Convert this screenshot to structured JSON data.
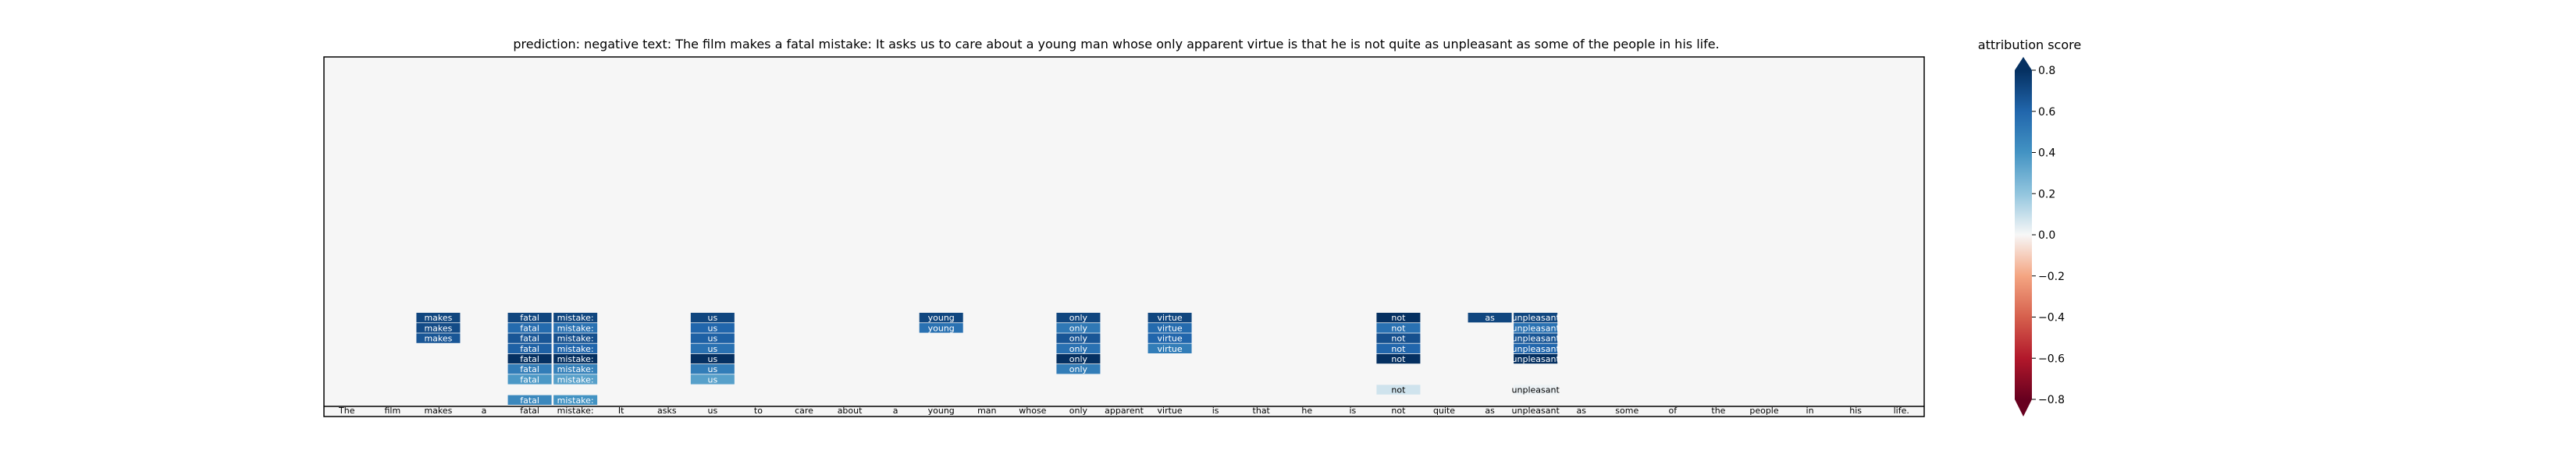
{
  "chart_data": {
    "type": "heatmap",
    "title": "prediction:  negative     text:  The film makes a fatal mistake: It asks us to care about a young man whose only apparent virtue is that he is not quite as unpleasant as some of the people in his life.",
    "tokens": [
      "The",
      "film",
      "makes",
      "a",
      "fatal",
      "mistake:",
      "It",
      "asks",
      "us",
      "to",
      "care",
      "about",
      "a",
      "young",
      "man",
      "whose",
      "only",
      "apparent",
      "virtue",
      "is",
      "that",
      "he",
      "is",
      "not",
      "quite",
      "as",
      "unpleasant",
      "as",
      "some",
      "of",
      "the",
      "people",
      "in",
      "his",
      "life."
    ],
    "cells": [
      {
        "token": 2,
        "row": 0,
        "value": 0.72
      },
      {
        "token": 2,
        "row": 1,
        "value": 0.7
      },
      {
        "token": 2,
        "row": 2,
        "value": 0.66
      },
      {
        "token": 4,
        "row": 0,
        "value": 0.72
      },
      {
        "token": 4,
        "row": 1,
        "value": 0.58
      },
      {
        "token": 4,
        "row": 2,
        "value": 0.66
      },
      {
        "token": 4,
        "row": 3,
        "value": 0.62
      },
      {
        "token": 4,
        "row": 4,
        "value": 0.82
      },
      {
        "token": 4,
        "row": 5,
        "value": 0.5
      },
      {
        "token": 4,
        "row": 6,
        "value": 0.38
      },
      {
        "token": 4,
        "row": 8,
        "value": 0.45
      },
      {
        "token": 5,
        "row": 0,
        "value": 0.72
      },
      {
        "token": 5,
        "row": 1,
        "value": 0.55
      },
      {
        "token": 5,
        "row": 2,
        "value": 0.68
      },
      {
        "token": 5,
        "row": 3,
        "value": 0.6
      },
      {
        "token": 5,
        "row": 4,
        "value": 0.8
      },
      {
        "token": 5,
        "row": 5,
        "value": 0.48
      },
      {
        "token": 5,
        "row": 6,
        "value": 0.35
      },
      {
        "token": 5,
        "row": 8,
        "value": 0.4
      },
      {
        "token": 8,
        "row": 0,
        "value": 0.72
      },
      {
        "token": 8,
        "row": 1,
        "value": 0.6
      },
      {
        "token": 8,
        "row": 2,
        "value": 0.62
      },
      {
        "token": 8,
        "row": 3,
        "value": 0.55
      },
      {
        "token": 8,
        "row": 4,
        "value": 0.85
      },
      {
        "token": 8,
        "row": 5,
        "value": 0.5
      },
      {
        "token": 8,
        "row": 6,
        "value": 0.35
      },
      {
        "token": 13,
        "row": 0,
        "value": 0.72
      },
      {
        "token": 13,
        "row": 1,
        "value": 0.55
      },
      {
        "token": 16,
        "row": 0,
        "value": 0.72
      },
      {
        "token": 16,
        "row": 1,
        "value": 0.52
      },
      {
        "token": 16,
        "row": 2,
        "value": 0.66
      },
      {
        "token": 16,
        "row": 3,
        "value": 0.55
      },
      {
        "token": 16,
        "row": 4,
        "value": 0.8
      },
      {
        "token": 16,
        "row": 5,
        "value": 0.5
      },
      {
        "token": 18,
        "row": 0,
        "value": 0.72
      },
      {
        "token": 18,
        "row": 1,
        "value": 0.58
      },
      {
        "token": 18,
        "row": 2,
        "value": 0.6
      },
      {
        "token": 18,
        "row": 3,
        "value": 0.5
      },
      {
        "token": 23,
        "row": 0,
        "value": 0.8
      },
      {
        "token": 23,
        "row": 1,
        "value": 0.55
      },
      {
        "token": 23,
        "row": 2,
        "value": 0.68
      },
      {
        "token": 23,
        "row": 3,
        "value": 0.6
      },
      {
        "token": 23,
        "row": 4,
        "value": 0.88
      },
      {
        "token": 23,
        "row": 7,
        "value": 0.08
      },
      {
        "token": 25,
        "row": 0,
        "value": 0.72
      },
      {
        "token": 26,
        "row": 0,
        "value": 0.72
      },
      {
        "token": 26,
        "row": 1,
        "value": 0.55
      },
      {
        "token": 26,
        "row": 2,
        "value": 0.66
      },
      {
        "token": 26,
        "row": 3,
        "value": 0.6
      },
      {
        "token": 26,
        "row": 4,
        "value": 0.8
      },
      {
        "token": 26,
        "row": 7,
        "value": 0.02
      }
    ],
    "colorbar": {
      "label": "attribution score",
      "range": [
        -0.8,
        0.8
      ],
      "ticks": [
        0.8,
        0.6,
        0.4,
        0.2,
        0.0,
        -0.2,
        -0.4,
        -0.6,
        -0.8
      ],
      "tick_labels": [
        "0.8",
        "0.6",
        "0.4",
        "0.2",
        "0.0",
        "−0.2",
        "−0.4",
        "−0.6",
        "−0.8"
      ],
      "colormap": "RdBu"
    },
    "colors": {
      "background": "#f6f6f6",
      "text_light": "#ffffff",
      "text_dark": "#000000"
    }
  }
}
